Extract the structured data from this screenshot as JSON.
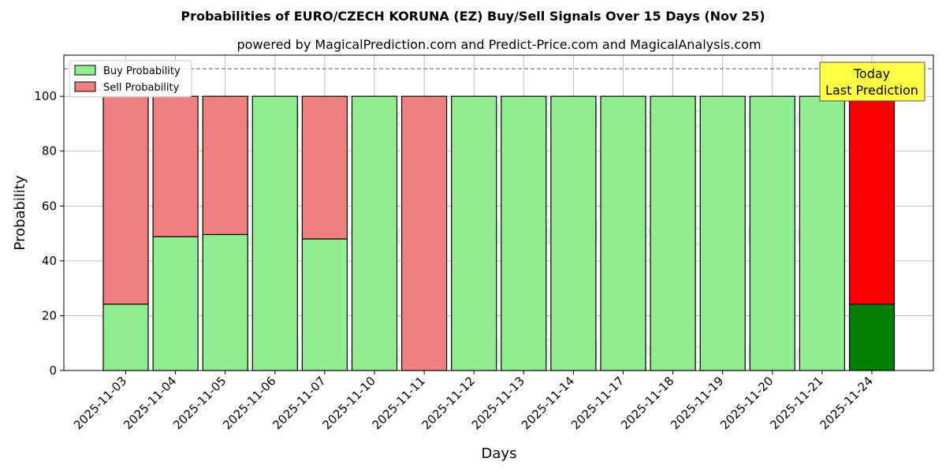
{
  "chart_data": {
    "type": "bar",
    "title": "Probabilities of EURO/CZECH KORUNA (EZ) Buy/Sell Signals Over 15 Days (Nov 25)",
    "subtitle": "powered by MagicalPrediction.com and Predict-Price.com and MagicalAnalysis.com",
    "xlabel": "Days",
    "ylabel": "Probability",
    "ylim": [
      0,
      115
    ],
    "yticks": [
      0,
      20,
      40,
      60,
      80,
      100
    ],
    "grid": true,
    "legend_position": "top-left",
    "reference_line": 110,
    "categories": [
      "2025-11-03",
      "2025-11-04",
      "2025-11-05",
      "2025-11-06",
      "2025-11-07",
      "2025-11-10",
      "2025-11-11",
      "2025-11-12",
      "2025-11-13",
      "2025-11-14",
      "2025-11-17",
      "2025-11-18",
      "2025-11-19",
      "2025-11-20",
      "2025-11-21",
      "2025-11-24"
    ],
    "series": [
      {
        "name": "Buy Probability",
        "color": "#90ee90",
        "highlight_color": "#008000",
        "values": [
          24.2,
          48.8,
          49.6,
          100,
          48.0,
          100,
          0,
          100,
          100,
          100,
          100,
          100,
          100,
          100,
          100,
          24.2
        ]
      },
      {
        "name": "Sell Probability",
        "color": "#f08080",
        "highlight_color": "#ff0000",
        "values": [
          75.8,
          51.2,
          50.4,
          0,
          52.0,
          0,
          100,
          0,
          0,
          0,
          0,
          0,
          0,
          0,
          0,
          75.8
        ]
      }
    ],
    "highlight_index": 15,
    "annotation": {
      "line1": "Today",
      "line2": "Last Prediction",
      "color": "#ffff44"
    },
    "watermarks": [
      "MagicalAnalysis.com",
      "MagicalPrediction.com"
    ]
  }
}
